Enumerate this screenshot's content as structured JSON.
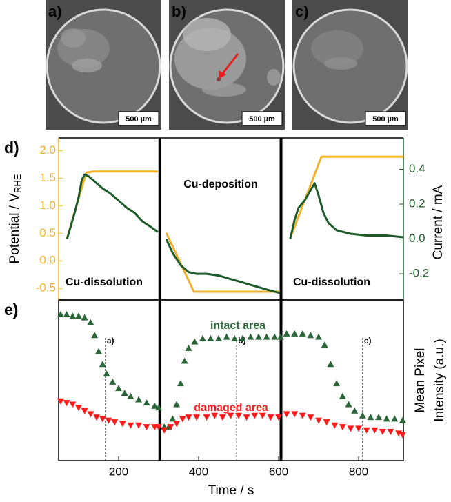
{
  "images": [
    {
      "label": "a)",
      "scale_bar": "500 µm"
    },
    {
      "label": "b)",
      "scale_bar": "500 µm"
    },
    {
      "label": "c)",
      "scale_bar": "500 µm"
    }
  ],
  "chart_data": [
    {
      "type": "line",
      "panel_label": "d)",
      "ylabel": "Potential / V",
      "ylabel_sub": "RHE",
      "y2label": "Current / mA",
      "xlim": [
        50,
        912
      ],
      "ylim": [
        -0.71,
        2.23
      ],
      "yticks": [
        -0.5,
        {
          "value": 0,
          "label": "0.0"
        },
        0.5,
        {
          "value": 1,
          "label": "1.0"
        },
        1.5,
        {
          "value": 2,
          "label": "2.0"
        }
      ],
      "y2lim": [
        -0.35,
        0.58
      ],
      "y2ticks": [
        -0.2,
        {
          "value": 0,
          "label": "0.0"
        },
        0.2,
        0.4
      ],
      "ycolor": "#f0b22e",
      "y2color": "#1d5b2a",
      "axis_breaks": [
        303,
        606
      ],
      "annotations": [
        "Cu-dissolution",
        "Cu-deposition",
        "Cu-dissolution"
      ],
      "series": [
        {
          "color": "#f0b22e",
          "x": [
            71,
            119,
            135,
            298,
            302,
            319,
            388,
            603,
            610,
            629,
            707,
            912
          ],
          "values": [
            0.41,
            1.6,
            1.62,
            1.62,
            null,
            0.51,
            -0.56,
            -0.56,
            null,
            0.41,
            1.89,
            1.89
          ]
        },
        {
          "color": "#1d5b2a",
          "axis": "y2",
          "x": [
            71,
            80,
            90,
            100,
            108,
            115,
            125,
            140,
            160,
            180,
            200,
            220,
            240,
            260,
            280,
            298,
            302,
            319,
            335,
            355,
            375,
            395,
            420,
            450,
            480,
            510,
            540,
            570,
            603,
            610,
            629,
            640,
            650,
            665,
            680,
            690,
            700,
            712,
            725,
            745,
            780,
            820,
            870,
            912
          ],
          "values": [
            0.0,
            0.07,
            0.15,
            0.24,
            0.34,
            0.37,
            0.36,
            0.33,
            0.29,
            0.26,
            0.22,
            0.18,
            0.15,
            0.1,
            0.07,
            0.04,
            null,
            0.0,
            -0.08,
            -0.15,
            -0.19,
            -0.2,
            -0.2,
            -0.21,
            -0.23,
            -0.25,
            -0.27,
            -0.29,
            -0.31,
            null,
            0.0,
            0.11,
            0.18,
            0.22,
            0.28,
            0.32,
            0.25,
            0.15,
            0.09,
            0.05,
            0.03,
            0.02,
            0.02,
            0.01
          ]
        }
      ]
    },
    {
      "type": "scatter",
      "panel_label": "e)",
      "xlabel": "Time / s",
      "ylabel": [
        "Mean Pixel",
        "Intensity (a.u.)"
      ],
      "xlim": [
        50,
        912
      ],
      "ylim": [
        0,
        100
      ],
      "xticks": [
        200,
        400,
        600,
        800
      ],
      "axis_breaks": [
        303,
        606
      ],
      "markers": [
        {
          "x": 167,
          "label": "a)"
        },
        {
          "x": 495,
          "label": "b)"
        },
        {
          "x": 810,
          "label": "c)"
        }
      ],
      "series": [
        {
          "name": "intact area",
          "color": "#2a6637",
          "marker": "triangle-up",
          "x": [
            55,
            70,
            85,
            100,
            115,
            130,
            140,
            150,
            160,
            170,
            185,
            200,
            215,
            230,
            250,
            270,
            290,
            300,
            314,
            325,
            335,
            345,
            355,
            365,
            375,
            390,
            410,
            430,
            450,
            470,
            490,
            510,
            530,
            550,
            570,
            590,
            605,
            620,
            640,
            660,
            680,
            700,
            715,
            730,
            745,
            760,
            775,
            790,
            810,
            830,
            850,
            870,
            890,
            910
          ],
          "values": [
            91,
            91,
            90,
            90,
            89,
            86,
            78,
            68,
            60,
            54,
            49,
            45,
            42,
            40,
            38,
            36,
            34,
            33,
            21,
            21,
            26,
            35,
            48,
            62,
            70,
            74,
            76,
            76,
            76,
            77,
            76,
            76,
            77,
            77,
            77,
            77,
            77,
            79,
            79,
            79,
            78,
            77,
            72,
            60,
            48,
            40,
            35,
            31,
            28,
            27,
            27,
            26,
            26,
            25
          ]
        },
        {
          "name": "damaged area",
          "color": "#ff1a1a",
          "marker": "triangle-down",
          "x": [
            55,
            70,
            85,
            100,
            115,
            130,
            145,
            160,
            175,
            190,
            210,
            230,
            250,
            270,
            290,
            300,
            314,
            330,
            345,
            360,
            375,
            395,
            420,
            440,
            460,
            480,
            500,
            520,
            540,
            560,
            580,
            600,
            620,
            640,
            660,
            680,
            700,
            720,
            740,
            760,
            780,
            800,
            820,
            840,
            860,
            880,
            900,
            910
          ],
          "values": [
            37,
            36,
            35,
            33,
            31,
            29,
            27,
            26,
            25,
            24,
            23,
            22,
            22,
            21,
            21,
            21,
            19,
            21,
            23,
            26,
            27,
            27,
            27,
            28,
            27,
            28,
            28,
            27,
            28,
            28,
            27,
            27,
            29,
            29,
            28,
            27,
            25,
            24,
            22,
            21,
            20,
            20,
            19,
            19,
            18,
            18,
            17,
            16
          ]
        }
      ]
    }
  ]
}
